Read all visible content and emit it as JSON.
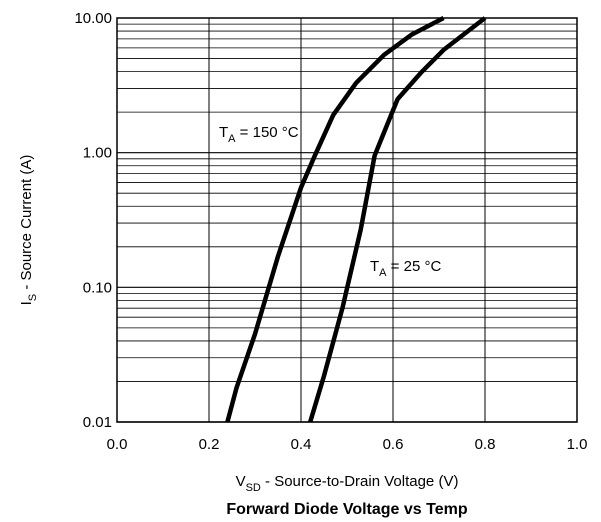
{
  "chart_data": {
    "type": "line",
    "title": "Forward Diode Voltage vs Temp",
    "xlabel": {
      "main": "V",
      "sub": "SD",
      "rest": " - Source-to-Drain Voltage (V)"
    },
    "ylabel": {
      "main": "I",
      "sub": "S",
      "rest": " - Source Current (A)"
    },
    "xlim": [
      0.0,
      1.0
    ],
    "ylim": [
      0.01,
      10.0
    ],
    "yscale": "log",
    "grid": true,
    "x_ticks": [
      0.0,
      0.2,
      0.4,
      0.6,
      0.8,
      1.0
    ],
    "x_tick_labels": [
      "0.0",
      "0.2",
      "0.4",
      "0.6",
      "0.8",
      "1.0"
    ],
    "y_ticks": [
      0.01,
      0.1,
      1.0,
      10.0
    ],
    "y_tick_labels": [
      "0.01",
      "0.10",
      "1.00",
      "10.00"
    ],
    "series": [
      {
        "name": {
          "main": "T",
          "sub": "A",
          "rest": " = 150 °C"
        },
        "color": "#000000",
        "points": [
          [
            0.24,
            0.01
          ],
          [
            0.26,
            0.018
          ],
          [
            0.3,
            0.045
          ],
          [
            0.35,
            0.17
          ],
          [
            0.4,
            0.55
          ],
          [
            0.43,
            0.95
          ],
          [
            0.47,
            1.9
          ],
          [
            0.52,
            3.3
          ],
          [
            0.58,
            5.3
          ],
          [
            0.64,
            7.5
          ],
          [
            0.71,
            10.0
          ]
        ]
      },
      {
        "name": {
          "main": "T",
          "sub": "A",
          "rest": " = 25 °C"
        },
        "color": "#000000",
        "points": [
          [
            0.42,
            0.01
          ],
          [
            0.45,
            0.022
          ],
          [
            0.49,
            0.07
          ],
          [
            0.53,
            0.27
          ],
          [
            0.56,
            0.95
          ],
          [
            0.58,
            1.4
          ],
          [
            0.61,
            2.5
          ],
          [
            0.66,
            3.9
          ],
          [
            0.71,
            5.8
          ],
          [
            0.8,
            10.0
          ]
        ]
      }
    ]
  }
}
